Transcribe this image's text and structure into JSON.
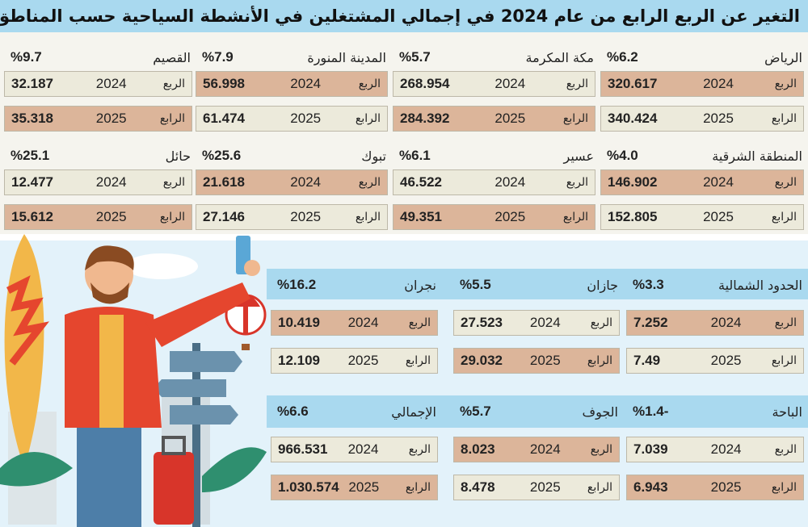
{
  "title": "التغير عن الربع الرابع من عام 2024 في إجمالي المشتغلين في الأنشطة السياحية حسب المناطق الإدارية:",
  "row_labels": {
    "q2024": "الربع",
    "q2025": "الرابع",
    "y2024": "2024",
    "y2025": "2025"
  },
  "colors": {
    "accent_blue": "#a9d9ef",
    "orange_box": "#dcb59a",
    "light_box": "#eceadb",
    "top_bg": "#f5f4ee",
    "bottom_bg": "#e3f2fa"
  },
  "regions": [
    {
      "name": "الرياض",
      "pct": "%6.2",
      "v2024": "320.617",
      "v2025": "340.424"
    },
    {
      "name": "مكة المكرمة",
      "pct": "%5.7",
      "v2024": "268.954",
      "v2025": "284.392"
    },
    {
      "name": "المدينة المنورة",
      "pct": "%7.9",
      "v2024": "56.998",
      "v2025": "61.474"
    },
    {
      "name": "القصيم",
      "pct": "%9.7",
      "v2024": "32.187",
      "v2025": "35.318"
    },
    {
      "name": "المنطقة الشرقية",
      "pct": "%4.0",
      "v2024": "146.902",
      "v2025": "152.805"
    },
    {
      "name": "عسير",
      "pct": "%6.1",
      "v2024": "46.522",
      "v2025": "49.351"
    },
    {
      "name": "تبوك",
      "pct": "%25.6",
      "v2024": "21.618",
      "v2025": "27.146"
    },
    {
      "name": "حائل",
      "pct": "%25.1",
      "v2024": "12.477",
      "v2025": "15.612"
    },
    {
      "name": "الحدود الشمالية",
      "pct": "%3.3",
      "v2024": "7.252",
      "v2025": "7.49"
    },
    {
      "name": "جازان",
      "pct": "%5.5",
      "v2024": "27.523",
      "v2025": "29.032"
    },
    {
      "name": "نجران",
      "pct": "%16.2",
      "v2024": "10.419",
      "v2025": "12.109"
    },
    {
      "name": "الباحة",
      "pct": "%1.4-",
      "v2024": "7.039",
      "v2025": "6.943"
    },
    {
      "name": "الجوف",
      "pct": "%5.7",
      "v2024": "8.023",
      "v2025": "8.478"
    },
    {
      "name": "الإجمالي",
      "pct": "%6.6",
      "v2024": "966.531",
      "v2025": "1.030.574"
    }
  ]
}
